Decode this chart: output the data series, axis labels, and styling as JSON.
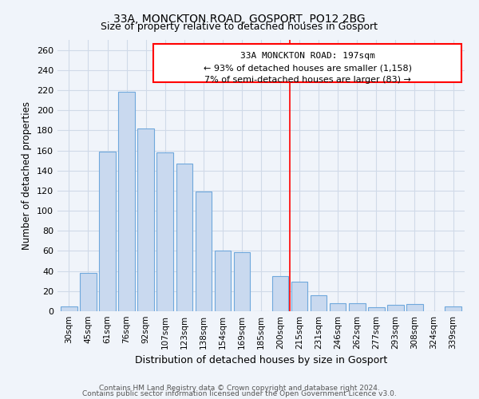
{
  "title": "33A, MONCKTON ROAD, GOSPORT, PO12 2BG",
  "subtitle": "Size of property relative to detached houses in Gosport",
  "xlabel": "Distribution of detached houses by size in Gosport",
  "ylabel": "Number of detached properties",
  "bar_labels": [
    "30sqm",
    "45sqm",
    "61sqm",
    "76sqm",
    "92sqm",
    "107sqm",
    "123sqm",
    "138sqm",
    "154sqm",
    "169sqm",
    "185sqm",
    "200sqm",
    "215sqm",
    "231sqm",
    "246sqm",
    "262sqm",
    "277sqm",
    "293sqm",
    "308sqm",
    "324sqm",
    "339sqm"
  ],
  "bar_values": [
    5,
    38,
    159,
    218,
    182,
    158,
    147,
    119,
    60,
    59,
    0,
    35,
    29,
    16,
    8,
    8,
    4,
    6,
    7,
    0,
    5
  ],
  "bar_color": "#c9d9ef",
  "bar_edge_color": "#6fa8dc",
  "ylim": [
    0,
    270
  ],
  "yticks": [
    0,
    20,
    40,
    60,
    80,
    100,
    120,
    140,
    160,
    180,
    200,
    220,
    240,
    260
  ],
  "vline_x_index": 11.5,
  "annotation_title": "33A MONCKTON ROAD: 197sqm",
  "annotation_line1": "← 93% of detached houses are smaller (1,158)",
  "annotation_line2": "7% of semi-detached houses are larger (83) →",
  "footer1": "Contains HM Land Registry data © Crown copyright and database right 2024.",
  "footer2": "Contains public sector information licensed under the Open Government Licence v3.0.",
  "bg_color": "#f0f4fa",
  "grid_color": "#d0dae8"
}
